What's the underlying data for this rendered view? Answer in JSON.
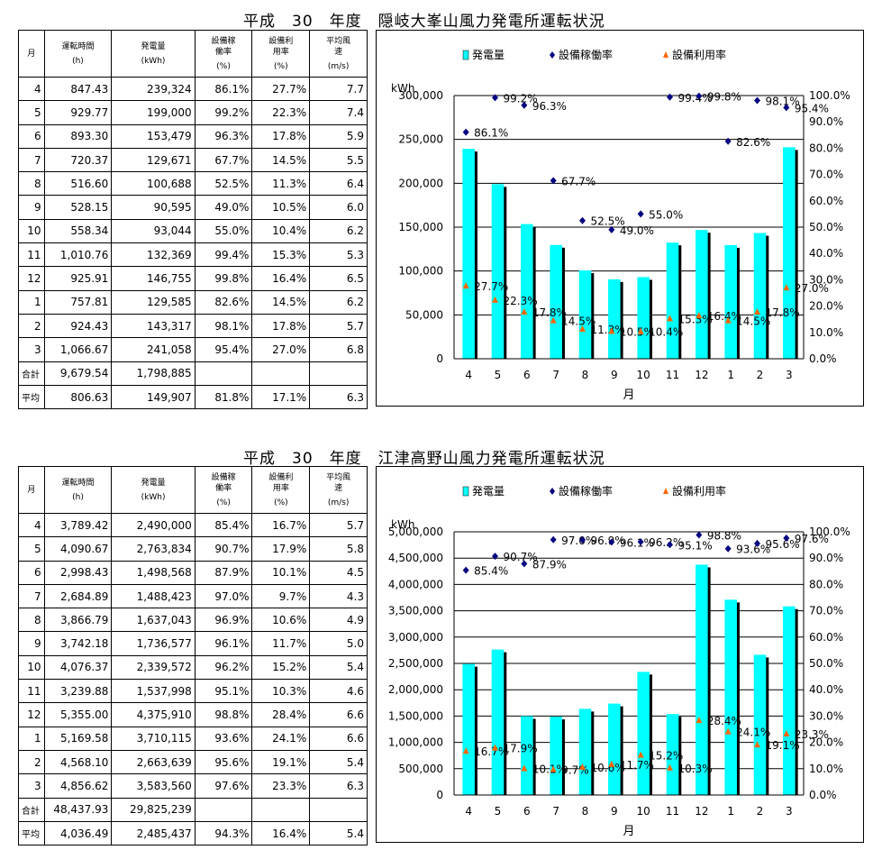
{
  "charts_meta": {
    "legend_energy": "発電量",
    "legend_avail": "設備稼働率",
    "legend_util": "設備利用率",
    "unit_y": "kWh",
    "xlabel": "月"
  },
  "table_headers": {
    "month": "月",
    "hours": "運転時間",
    "hours_unit": "(h)",
    "energy": "発電量",
    "energy_unit": "(kWh)",
    "avail": "設備稼働率",
    "avail_unit": "(%)",
    "util": "設備利用率",
    "util_unit": "(%)",
    "wind": "平均風速",
    "wind_unit": "(m/s)",
    "total": "合計",
    "average": "平均"
  },
  "plants": [
    {
      "title": "平成　30　年度　隠岐大峯山風力発電所運転状況",
      "rows": [
        {
          "month": "4",
          "hours": "847.43",
          "energy": "239,324",
          "avail": "86.1%",
          "util": "27.7%",
          "wind": "7.7"
        },
        {
          "month": "5",
          "hours": "929.77",
          "energy": "199,000",
          "avail": "99.2%",
          "util": "22.3%",
          "wind": "7.4"
        },
        {
          "month": "6",
          "hours": "893.30",
          "energy": "153,479",
          "avail": "96.3%",
          "util": "17.8%",
          "wind": "5.9"
        },
        {
          "month": "7",
          "hours": "720.37",
          "energy": "129,671",
          "avail": "67.7%",
          "util": "14.5%",
          "wind": "5.5"
        },
        {
          "month": "8",
          "hours": "516.60",
          "energy": "100,688",
          "avail": "52.5%",
          "util": "11.3%",
          "wind": "6.4"
        },
        {
          "month": "9",
          "hours": "528.15",
          "energy": "90,595",
          "avail": "49.0%",
          "util": "10.5%",
          "wind": "6.0"
        },
        {
          "month": "10",
          "hours": "558.34",
          "energy": "93,044",
          "avail": "55.0%",
          "util": "10.4%",
          "wind": "6.2"
        },
        {
          "month": "11",
          "hours": "1,010.76",
          "energy": "132,369",
          "avail": "99.4%",
          "util": "15.3%",
          "wind": "5.3"
        },
        {
          "month": "12",
          "hours": "925.91",
          "energy": "146,755",
          "avail": "99.8%",
          "util": "16.4%",
          "wind": "6.5"
        },
        {
          "month": "1",
          "hours": "757.81",
          "energy": "129,585",
          "avail": "82.6%",
          "util": "14.5%",
          "wind": "6.2"
        },
        {
          "month": "2",
          "hours": "924.43",
          "energy": "143,317",
          "avail": "98.1%",
          "util": "17.8%",
          "wind": "5.7"
        },
        {
          "month": "3",
          "hours": "1,066.67",
          "energy": "241,058",
          "avail": "95.4%",
          "util": "27.0%",
          "wind": "6.8"
        }
      ],
      "total": {
        "hours": "9,679.54",
        "energy": "1,798,885"
      },
      "average": {
        "hours": "806.63",
        "energy": "149,907",
        "avail": "81.8%",
        "util": "17.1%",
        "wind": "6.3"
      }
    },
    {
      "title": "平成　30　年度　江津高野山風力発電所運転状況",
      "rows": [
        {
          "month": "4",
          "hours": "3,789.42",
          "energy": "2,490,000",
          "avail": "85.4%",
          "util": "16.7%",
          "wind": "5.7"
        },
        {
          "month": "5",
          "hours": "4,090.67",
          "energy": "2,763,834",
          "avail": "90.7%",
          "util": "17.9%",
          "wind": "5.8"
        },
        {
          "month": "6",
          "hours": "2,998.43",
          "energy": "1,498,568",
          "avail": "87.9%",
          "util": "10.1%",
          "wind": "4.5"
        },
        {
          "month": "7",
          "hours": "2,684.89",
          "energy": "1,488,423",
          "avail": "97.0%",
          "util": "9.7%",
          "wind": "4.3"
        },
        {
          "month": "8",
          "hours": "3,866.79",
          "energy": "1,637,043",
          "avail": "96.9%",
          "util": "10.6%",
          "wind": "4.9"
        },
        {
          "month": "9",
          "hours": "3,742.18",
          "energy": "1,736,577",
          "avail": "96.1%",
          "util": "11.7%",
          "wind": "5.0"
        },
        {
          "month": "10",
          "hours": "4,076.37",
          "energy": "2,339,572",
          "avail": "96.2%",
          "util": "15.2%",
          "wind": "5.4"
        },
        {
          "month": "11",
          "hours": "3,239.88",
          "energy": "1,537,998",
          "avail": "95.1%",
          "util": "10.3%",
          "wind": "4.6"
        },
        {
          "month": "12",
          "hours": "5,355.00",
          "energy": "4,375,910",
          "avail": "98.8%",
          "util": "28.4%",
          "wind": "6.6"
        },
        {
          "month": "1",
          "hours": "5,169.58",
          "energy": "3,710,115",
          "avail": "93.6%",
          "util": "24.1%",
          "wind": "6.6"
        },
        {
          "month": "2",
          "hours": "4,568.10",
          "energy": "2,663,639",
          "avail": "95.6%",
          "util": "19.1%",
          "wind": "5.4"
        },
        {
          "month": "3",
          "hours": "4,856.62",
          "energy": "3,583,560",
          "avail": "97.6%",
          "util": "23.3%",
          "wind": "6.3"
        }
      ],
      "total": {
        "hours": "48,437.93",
        "energy": "29,825,239"
      },
      "average": {
        "hours": "4,036.49",
        "energy": "2,485,437",
        "avail": "94.3%",
        "util": "16.4%",
        "wind": "5.4"
      }
    }
  ],
  "chart_data": [
    {
      "type": "bar",
      "categories": [
        "4",
        "5",
        "6",
        "7",
        "8",
        "9",
        "10",
        "11",
        "12",
        "1",
        "2",
        "3"
      ],
      "series": [
        {
          "name": "発電量",
          "axis": "left",
          "type": "bar",
          "color": "#00FFFF",
          "values": [
            239324,
            199000,
            153479,
            129671,
            100688,
            90595,
            93044,
            132369,
            146755,
            129585,
            143317,
            241058
          ]
        },
        {
          "name": "設備稼働率",
          "axis": "right",
          "type": "scatter",
          "marker": "diamond",
          "color": "#000080",
          "values": [
            86.1,
            99.2,
            96.3,
            67.7,
            52.5,
            49.0,
            55.0,
            99.4,
            99.8,
            82.6,
            98.1,
            95.4
          ]
        },
        {
          "name": "設備利用率",
          "axis": "right",
          "type": "scatter",
          "marker": "triangle",
          "color": "#FF6600",
          "values": [
            27.7,
            22.3,
            17.8,
            14.5,
            11.3,
            10.5,
            10.4,
            15.3,
            16.4,
            14.5,
            17.8,
            27.0
          ]
        }
      ],
      "xlabel": "月",
      "ylabel": "kWh",
      "ylim": [
        0,
        300000
      ],
      "yticks": [
        "0",
        "50,000",
        "100,000",
        "150,000",
        "200,000",
        "250,000",
        "300,000"
      ],
      "y2lim": [
        0,
        100
      ],
      "y2ticks": [
        "0.0%",
        "10.0%",
        "20.0%",
        "30.0%",
        "40.0%",
        "50.0%",
        "60.0%",
        "70.0%",
        "80.0%",
        "90.0%",
        "100.0%"
      ],
      "legend": "top",
      "grid": true
    },
    {
      "type": "bar",
      "categories": [
        "4",
        "5",
        "6",
        "7",
        "8",
        "9",
        "10",
        "11",
        "12",
        "1",
        "2",
        "3"
      ],
      "series": [
        {
          "name": "発電量",
          "axis": "left",
          "type": "bar",
          "color": "#00FFFF",
          "values": [
            2490000,
            2763834,
            1498568,
            1488423,
            1637043,
            1736577,
            2339572,
            1537998,
            4375910,
            3710115,
            2663639,
            3583560
          ]
        },
        {
          "name": "設備稼働率",
          "axis": "right",
          "type": "scatter",
          "marker": "diamond",
          "color": "#000080",
          "values": [
            85.4,
            90.7,
            87.9,
            97.0,
            96.9,
            96.1,
            96.2,
            95.1,
            98.8,
            93.6,
            95.6,
            97.6
          ]
        },
        {
          "name": "設備利用率",
          "axis": "right",
          "type": "scatter",
          "marker": "triangle",
          "color": "#FF6600",
          "values": [
            16.7,
            17.9,
            10.1,
            9.7,
            10.6,
            11.7,
            15.2,
            10.3,
            28.4,
            24.1,
            19.1,
            23.3
          ]
        }
      ],
      "xlabel": "月",
      "ylabel": "kWh",
      "ylim": [
        0,
        5000000
      ],
      "yticks": [
        "0",
        "500,000",
        "1,000,000",
        "1,500,000",
        "2,000,000",
        "2,500,000",
        "3,000,000",
        "3,500,000",
        "4,000,000",
        "4,500,000",
        "5,000,000"
      ],
      "y2lim": [
        0,
        100
      ],
      "y2ticks": [
        "0.0%",
        "10.0%",
        "20.0%",
        "30.0%",
        "40.0%",
        "50.0%",
        "60.0%",
        "70.0%",
        "80.0%",
        "90.0%",
        "100.0%"
      ],
      "legend": "top",
      "grid": true
    }
  ]
}
